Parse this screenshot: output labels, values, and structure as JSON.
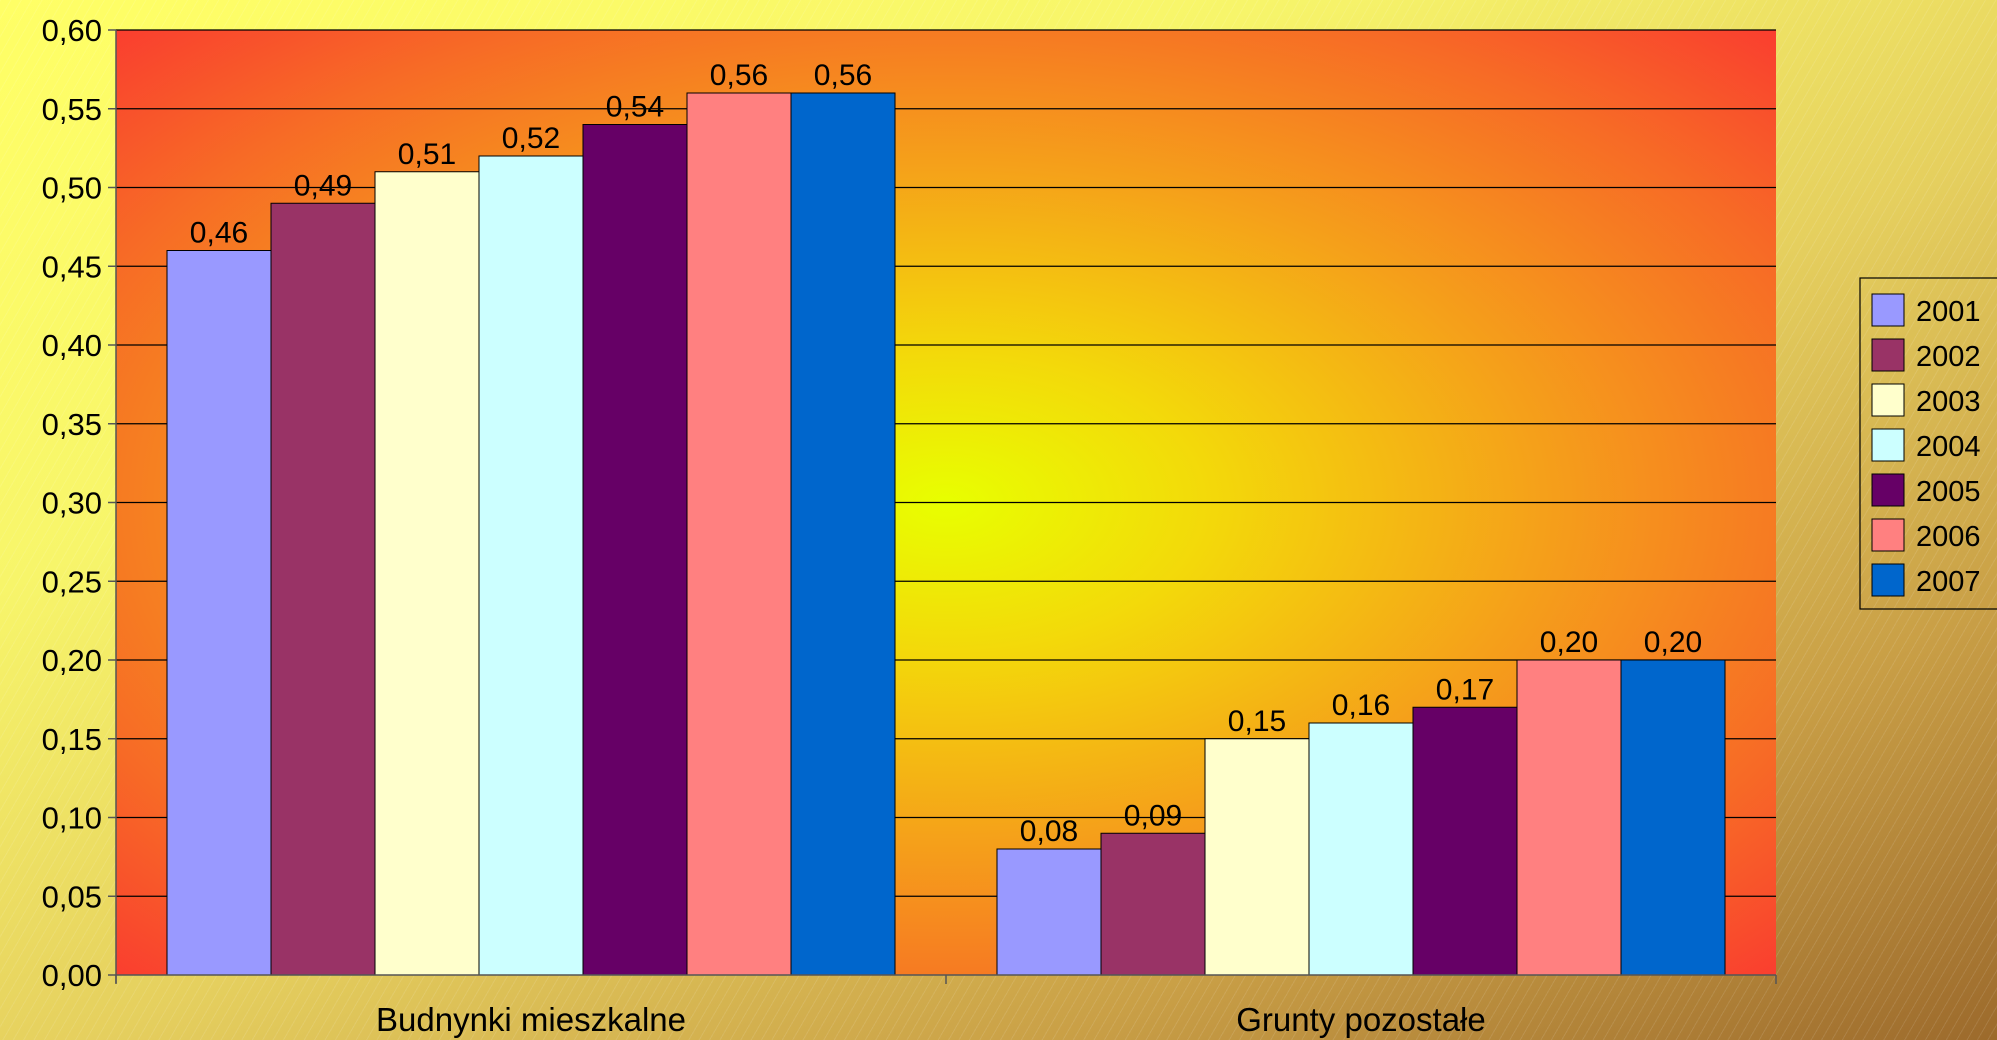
{
  "chart_data": {
    "type": "bar",
    "title": "",
    "xlabel": "",
    "ylabel": "",
    "categories": [
      "Budnynki mieszkalne",
      "Grunty pozostałe"
    ],
    "series": [
      {
        "name": "2001",
        "values": [
          0.46,
          0.08
        ],
        "labels": [
          "0,46",
          "0,08"
        ],
        "color": "#9999ff"
      },
      {
        "name": "2002",
        "values": [
          0.49,
          0.09
        ],
        "labels": [
          "0,49",
          "0,09"
        ],
        "color": "#993366"
      },
      {
        "name": "2003",
        "values": [
          0.51,
          0.15
        ],
        "labels": [
          "0,51",
          "0,15"
        ],
        "color": "#ffffcc"
      },
      {
        "name": "2004",
        "values": [
          0.52,
          0.16
        ],
        "labels": [
          "0,52",
          "0,16"
        ],
        "color": "#ccffff"
      },
      {
        "name": "2005",
        "values": [
          0.54,
          0.17
        ],
        "labels": [
          "0,54",
          "0,17"
        ],
        "color": "#660066"
      },
      {
        "name": "2006",
        "values": [
          0.56,
          0.2
        ],
        "labels": [
          "0,56",
          "0,20"
        ],
        "color": "#ff8080"
      },
      {
        "name": "2007",
        "values": [
          0.56,
          0.2
        ],
        "labels": [
          "0,56",
          "0,20"
        ],
        "color": "#0066cc"
      }
    ],
    "ylim": [
      0,
      0.6
    ],
    "yticks": [
      0,
      0.05,
      0.1,
      0.15,
      0.2,
      0.25,
      0.3,
      0.35,
      0.4,
      0.45,
      0.5,
      0.55,
      0.6
    ],
    "ytick_labels": [
      "0,00",
      "0,05",
      "0,10",
      "0,15",
      "0,20",
      "0,25",
      "0,30",
      "0,35",
      "0,40",
      "0,45",
      "0,50",
      "0,55",
      "0,60"
    ],
    "grid": true,
    "legend_position": "right",
    "plot_background": "radial gradient, yellow center to red edges"
  }
}
